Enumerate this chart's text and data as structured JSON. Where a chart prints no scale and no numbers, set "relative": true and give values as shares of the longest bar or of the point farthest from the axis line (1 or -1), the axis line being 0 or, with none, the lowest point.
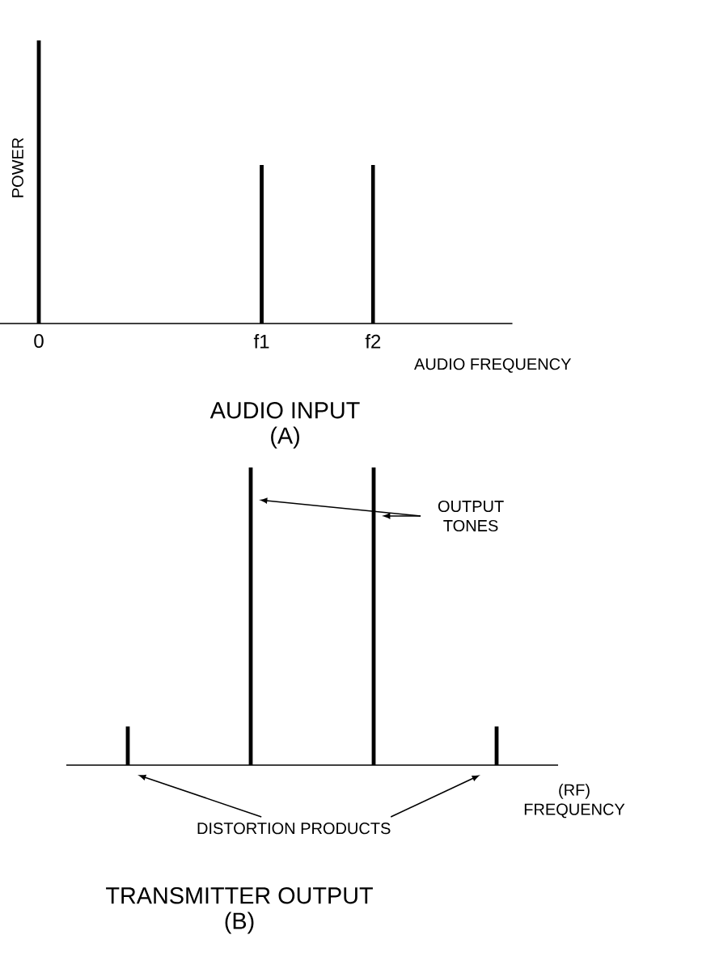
{
  "chart_data": [
    {
      "type": "bar",
      "relative": true,
      "categories": [
        "0",
        null,
        "f1",
        "f2"
      ],
      "values": [
        1,
        null,
        0.56,
        0.56
      ],
      "color": "#000000",
      "tick_labels": "x",
      "xlabel": "AUDIO FREQUENCY",
      "ylabel": "POWER",
      "title": "AUDIO INPUT",
      "subtitle": "(A)"
    },
    {
      "type": "bar",
      "relative": true,
      "categories": [
        null,
        null,
        null,
        null
      ],
      "values": [
        0.13,
        1,
        1,
        0.13
      ],
      "color": "#000000",
      "xlabel": "(RF) FREQUENCY",
      "title": "TRANSMITTER OUTPUT",
      "subtitle": "(B)",
      "annotations": [
        "OUTPUT TONES",
        "DISTORTION PRODUCTS"
      ]
    }
  ]
}
